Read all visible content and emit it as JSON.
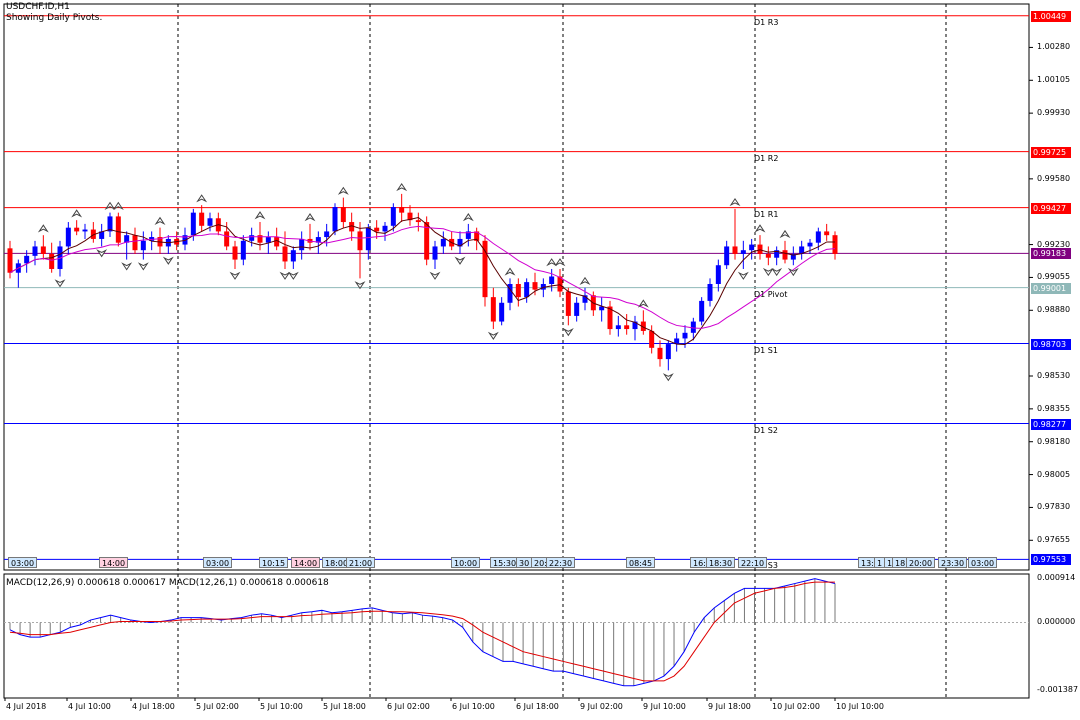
{
  "header": {
    "symbol_line": "USDCHF.ID,H1",
    "subtitle": "Showing Daily Pivots."
  },
  "macd": {
    "label": "MACD(12,26,9) 0.000618 0.000617 MACD(12,26,1) 0.000618 0.000618",
    "axis": [
      "0.000914",
      "0.000000",
      "-0.001387"
    ],
    "main": [
      -0.00015,
      -0.00025,
      -0.0003,
      -0.0003,
      -0.00025,
      -0.0002,
      -0.0001,
      -5e-05,
      5e-05,
      0.0001,
      0.00015,
      0.0001,
      5e-05,
      2e-05,
      0.0,
      2e-05,
      5e-05,
      0.0001,
      0.0001,
      0.0001,
      8e-05,
      5e-05,
      8e-05,
      0.0001,
      0.00015,
      0.00018,
      0.00015,
      0.0001,
      0.00015,
      0.0002,
      0.00022,
      0.00025,
      0.0002,
      0.00022,
      0.00025,
      0.00028,
      0.0003,
      0.00025,
      0.0002,
      0.00018,
      0.0002,
      0.00015,
      0.00013,
      0.0001,
      5e-05,
      -0.0001,
      -0.0004,
      -0.0006,
      -0.0007,
      -0.0008,
      -0.0008,
      -0.00085,
      -0.0009,
      -0.00095,
      -0.001,
      -0.001,
      -0.00105,
      -0.0011,
      -0.00115,
      -0.0012,
      -0.00125,
      -0.0013,
      -0.0013,
      -0.00125,
      -0.0012,
      -0.0011,
      -0.0009,
      -0.0006,
      -0.0002,
      0.0001,
      0.0003,
      0.00045,
      0.0006,
      0.0007,
      0.0007,
      0.0007,
      0.0007,
      0.00075,
      0.0008,
      0.00085,
      0.0009,
      0.00085,
      0.0008
    ],
    "signal": [
      -0.0002,
      -0.00022,
      -0.00025,
      -0.00025,
      -0.00025,
      -0.00022,
      -0.0002,
      -0.00015,
      -0.0001,
      -5e-05,
      0.0,
      2e-05,
      2e-05,
      2e-05,
      2e-05,
      2e-05,
      3e-05,
      5e-05,
      6e-05,
      7e-05,
      7e-05,
      7e-05,
      7e-05,
      8e-05,
      0.0001,
      0.00012,
      0.00012,
      0.00012,
      0.00012,
      0.00014,
      0.00015,
      0.00017,
      0.00018,
      0.00019,
      0.0002,
      0.00022,
      0.00023,
      0.00023,
      0.00022,
      0.00022,
      0.00021,
      0.0002,
      0.00018,
      0.00016,
      0.00013,
      8e-05,
      -5e-05,
      -0.0002,
      -0.0003,
      -0.0004,
      -0.0005,
      -0.0006,
      -0.00065,
      -0.0007,
      -0.00075,
      -0.0008,
      -0.00085,
      -0.0009,
      -0.00095,
      -0.001,
      -0.00105,
      -0.0011,
      -0.00115,
      -0.0012,
      -0.0012,
      -0.0012,
      -0.0011,
      -0.0009,
      -0.0006,
      -0.0003,
      0.0,
      0.0002,
      0.0004,
      0.0005,
      0.0006,
      0.00065,
      0.0007,
      0.00072,
      0.00075,
      0.0008,
      0.00083,
      0.00083,
      0.00083
    ]
  },
  "price_axis": [
    "1.00280",
    "1.00105",
    "0.99930",
    "0.99580",
    "0.99230",
    "0.99055",
    "0.98880",
    "0.98530",
    "0.98355",
    "0.98180",
    "0.98005",
    "0.97830",
    "0.97655"
  ],
  "pivots": [
    {
      "name": "D1 R3",
      "value": "1.00449",
      "color": "#ff0000",
      "box": "#ff0000"
    },
    {
      "name": "D1 R2",
      "value": "0.99725",
      "color": "#ff0000",
      "box": "#ff0000"
    },
    {
      "name": "D1 R1",
      "value": "0.99427",
      "color": "#ff0000",
      "box": "#ff0000"
    },
    {
      "name": "D1 Pivot",
      "value": "0.99001",
      "color": "#8fb8b8",
      "box": "#8fb8b8"
    },
    {
      "name": "D1 S1",
      "value": "0.98703",
      "color": "#0000ff",
      "box": "#0000ff"
    },
    {
      "name": "D1 S2",
      "value": "0.98277",
      "color": "#0000ff",
      "box": "#0000ff"
    },
    {
      "name": "D1 S3",
      "value": "0.97553",
      "color": "#0000ff",
      "box": "#0000ff"
    }
  ],
  "current_price": {
    "value": "0.99183",
    "color": "#800080"
  },
  "time_axis": [
    "4 Jul 2018",
    "4 Jul 10:00",
    "4 Jul 18:00",
    "5 Jul 02:00",
    "5 Jul 10:00",
    "5 Jul 18:00",
    "6 Jul 02:00",
    "6 Jul 10:00",
    "6 Jul 18:00",
    "9 Jul 02:00",
    "9 Jul 10:00",
    "9 Jul 18:00",
    "10 Jul 02:00",
    "10 Jul 10:00"
  ],
  "session_boxes": [
    "03:00",
    "14:00",
    "03:00",
    "10:15",
    "14:00",
    "18:00",
    "21:00",
    "10:00",
    "15:30",
    "30",
    "20:",
    "22:30",
    "08:45",
    "16:",
    "18:30",
    "22:10",
    "13:0",
    "1",
    "17",
    "18",
    "20:00",
    "23:30",
    "03:00"
  ],
  "colors": {
    "bull": "#0000ff",
    "bear": "#ff0000",
    "ma_fast": "#5a0000",
    "ma_slow": "#d000d0",
    "macd_main": "#0000ff",
    "macd_signal": "#e00000"
  },
  "chart_data": {
    "type": "candlestick",
    "title": "USDCHF.ID,H1",
    "ylim": [
      0.9755,
      1.0049
    ],
    "candles": [
      [
        0.9921,
        0.9925,
        0.9905,
        0.9908
      ],
      [
        0.9908,
        0.9915,
        0.99,
        0.9913
      ],
      [
        0.9913,
        0.992,
        0.9908,
        0.9917
      ],
      [
        0.9917,
        0.9925,
        0.9912,
        0.9922
      ],
      [
        0.9922,
        0.9928,
        0.9915,
        0.9918
      ],
      [
        0.9918,
        0.9924,
        0.9908,
        0.991
      ],
      [
        0.991,
        0.9925,
        0.9906,
        0.9922
      ],
      [
        0.9922,
        0.9935,
        0.9918,
        0.9932
      ],
      [
        0.9932,
        0.9936,
        0.9928,
        0.993
      ],
      [
        0.993,
        0.9934,
        0.9926,
        0.9931
      ],
      [
        0.9931,
        0.9935,
        0.9924,
        0.9926
      ],
      [
        0.9926,
        0.9934,
        0.9922,
        0.993
      ],
      [
        0.993,
        0.994,
        0.9927,
        0.9938
      ],
      [
        0.9938,
        0.994,
        0.9922,
        0.9924
      ],
      [
        0.9924,
        0.993,
        0.9915,
        0.9928
      ],
      [
        0.9928,
        0.9932,
        0.9918,
        0.992
      ],
      [
        0.992,
        0.993,
        0.9915,
        0.9925
      ],
      [
        0.9925,
        0.993,
        0.992,
        0.9927
      ],
      [
        0.9927,
        0.9932,
        0.9918,
        0.9922
      ],
      [
        0.9922,
        0.9928,
        0.9918,
        0.9926
      ],
      [
        0.9926,
        0.993,
        0.992,
        0.9923
      ],
      [
        0.9923,
        0.9932,
        0.992,
        0.9928
      ],
      [
        0.9928,
        0.9942,
        0.9925,
        0.994
      ],
      [
        0.994,
        0.9944,
        0.993,
        0.9933
      ],
      [
        0.9933,
        0.994,
        0.993,
        0.9937
      ],
      [
        0.9937,
        0.994,
        0.9928,
        0.993
      ],
      [
        0.993,
        0.9935,
        0.992,
        0.9922
      ],
      [
        0.9922,
        0.9925,
        0.991,
        0.9915
      ],
      [
        0.9915,
        0.9928,
        0.9912,
        0.9925
      ],
      [
        0.9925,
        0.9932,
        0.9922,
        0.9928
      ],
      [
        0.9928,
        0.9935,
        0.992,
        0.9924
      ],
      [
        0.9924,
        0.993,
        0.9918,
        0.9927
      ],
      [
        0.9927,
        0.9932,
        0.992,
        0.9922
      ],
      [
        0.9922,
        0.993,
        0.991,
        0.9914
      ],
      [
        0.9914,
        0.9922,
        0.991,
        0.992
      ],
      [
        0.992,
        0.993,
        0.9915,
        0.9926
      ],
      [
        0.9926,
        0.9934,
        0.992,
        0.9924
      ],
      [
        0.9924,
        0.993,
        0.9918,
        0.9927
      ],
      [
        0.9927,
        0.9934,
        0.9922,
        0.993
      ],
      [
        0.993,
        0.9945,
        0.9928,
        0.9943
      ],
      [
        0.9943,
        0.9948,
        0.9932,
        0.9935
      ],
      [
        0.9935,
        0.994,
        0.9925,
        0.993
      ],
      [
        0.993,
        0.9935,
        0.9905,
        0.992
      ],
      [
        0.992,
        0.9934,
        0.9915,
        0.9932
      ],
      [
        0.9932,
        0.9936,
        0.9926,
        0.993
      ],
      [
        0.993,
        0.9935,
        0.9925,
        0.9933
      ],
      [
        0.9933,
        0.9945,
        0.993,
        0.9943
      ],
      [
        0.9943,
        0.995,
        0.9935,
        0.994
      ],
      [
        0.994,
        0.9944,
        0.9933,
        0.9936
      ],
      [
        0.9936,
        0.994,
        0.993,
        0.9935
      ],
      [
        0.9935,
        0.9938,
        0.9912,
        0.9915
      ],
      [
        0.9915,
        0.9925,
        0.991,
        0.9922
      ],
      [
        0.9922,
        0.993,
        0.9918,
        0.9926
      ],
      [
        0.9926,
        0.993,
        0.992,
        0.9922
      ],
      [
        0.9922,
        0.993,
        0.9918,
        0.9926
      ],
      [
        0.9926,
        0.9934,
        0.9922,
        0.993
      ],
      [
        0.993,
        0.9932,
        0.992,
        0.9925
      ],
      [
        0.9925,
        0.9928,
        0.989,
        0.9895
      ],
      [
        0.9895,
        0.99,
        0.9878,
        0.9882
      ],
      [
        0.9882,
        0.9895,
        0.988,
        0.9892
      ],
      [
        0.9892,
        0.9905,
        0.9888,
        0.9902
      ],
      [
        0.9902,
        0.9905,
        0.989,
        0.9895
      ],
      [
        0.9895,
        0.9905,
        0.9892,
        0.9903
      ],
      [
        0.9903,
        0.9908,
        0.9896,
        0.9899
      ],
      [
        0.9899,
        0.9905,
        0.9895,
        0.9902
      ],
      [
        0.9902,
        0.991,
        0.9898,
        0.9906
      ],
      [
        0.9906,
        0.991,
        0.9895,
        0.9898
      ],
      [
        0.9898,
        0.99,
        0.988,
        0.9885
      ],
      [
        0.9885,
        0.9895,
        0.9882,
        0.9892
      ],
      [
        0.9892,
        0.99,
        0.9888,
        0.9896
      ],
      [
        0.9896,
        0.9898,
        0.9885,
        0.9888
      ],
      [
        0.9888,
        0.9895,
        0.9882,
        0.989
      ],
      [
        0.989,
        0.9893,
        0.9875,
        0.9878
      ],
      [
        0.9878,
        0.9885,
        0.9874,
        0.988
      ],
      [
        0.988,
        0.9886,
        0.9875,
        0.9878
      ],
      [
        0.9878,
        0.9885,
        0.9872,
        0.9882
      ],
      [
        0.9882,
        0.9888,
        0.9875,
        0.9877
      ],
      [
        0.9877,
        0.988,
        0.9865,
        0.9868
      ],
      [
        0.9868,
        0.9872,
        0.9858,
        0.9862
      ],
      [
        0.9862,
        0.9872,
        0.9856,
        0.987
      ],
      [
        0.987,
        0.9876,
        0.9866,
        0.9873
      ],
      [
        0.9873,
        0.988,
        0.9868,
        0.9876
      ],
      [
        0.9876,
        0.9884,
        0.9872,
        0.9882
      ],
      [
        0.9882,
        0.9895,
        0.988,
        0.9893
      ],
      [
        0.9893,
        0.9905,
        0.989,
        0.9902
      ],
      [
        0.9902,
        0.9915,
        0.9898,
        0.9912
      ],
      [
        0.9912,
        0.9925,
        0.991,
        0.9922
      ],
      [
        0.9922,
        0.9942,
        0.9915,
        0.9918
      ],
      [
        0.9918,
        0.9925,
        0.991,
        0.992
      ],
      [
        0.992,
        0.9926,
        0.9915,
        0.9923
      ],
      [
        0.9923,
        0.9928,
        0.9915,
        0.9918
      ],
      [
        0.9918,
        0.9922,
        0.9912,
        0.9916
      ],
      [
        0.9916,
        0.9922,
        0.9912,
        0.992
      ],
      [
        0.992,
        0.9925,
        0.9913,
        0.9915
      ],
      [
        0.9915,
        0.9922,
        0.9912,
        0.9918
      ],
      [
        0.9918,
        0.9925,
        0.9915,
        0.9922
      ],
      [
        0.9922,
        0.9926,
        0.9918,
        0.9924
      ],
      [
        0.9924,
        0.9932,
        0.992,
        0.993
      ],
      [
        0.993,
        0.9934,
        0.9925,
        0.9928
      ],
      [
        0.9928,
        0.993,
        0.9915,
        0.9918
      ]
    ]
  }
}
